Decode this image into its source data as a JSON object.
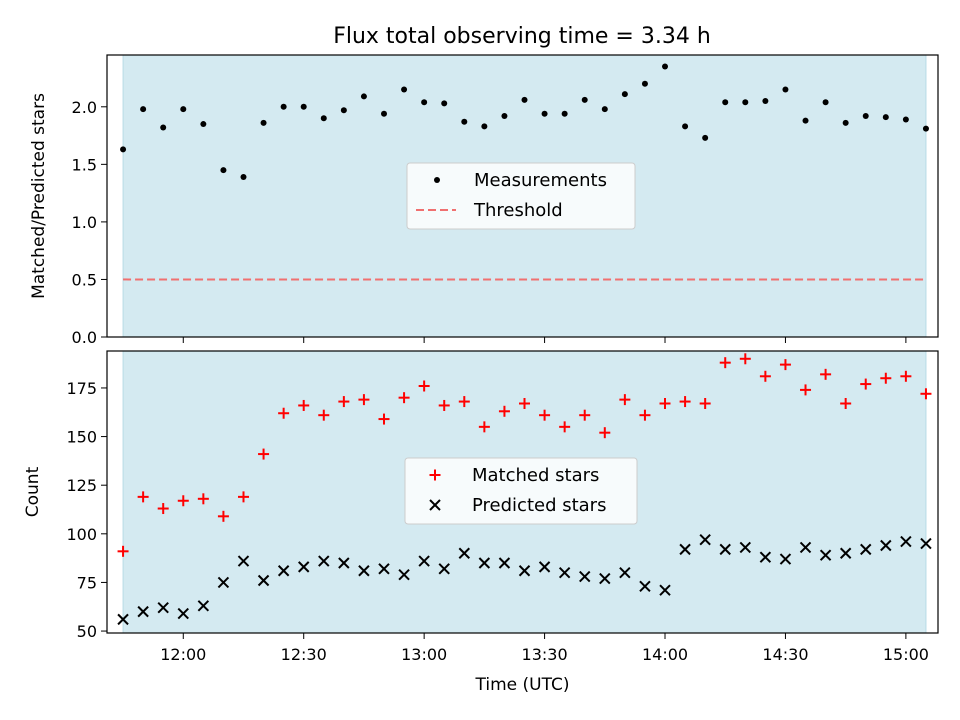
{
  "chart_data": [
    {
      "type": "scatter",
      "title": "Flux total observing time = 3.34 h",
      "ylabel": "Matched/Predicted stars",
      "xlabel": "",
      "ylim": [
        0,
        2.45
      ],
      "yticks": [
        0.0,
        0.5,
        1.0,
        1.5,
        2.0
      ],
      "ytick_labels": [
        "0.0",
        "0.5",
        "1.0",
        "1.5",
        "2.0"
      ],
      "xlim": [
        "11:41",
        "15:08"
      ],
      "x_time_axis": true,
      "shaded_band": {
        "from": "11:45",
        "to": "15:05",
        "color": "#d4eaf1"
      },
      "threshold": {
        "label": "Threshold",
        "value": 0.5,
        "color": "#f07070",
        "style": "dashed"
      },
      "legend_placement": "center",
      "series": [
        {
          "name": "Measurements",
          "marker": "dot",
          "color": "#000000",
          "x": [
            "11:45",
            "11:50",
            "11:55",
            "12:00",
            "12:05",
            "12:10",
            "12:15",
            "12:20",
            "12:25",
            "12:30",
            "12:35",
            "12:40",
            "12:45",
            "12:50",
            "12:55",
            "13:00",
            "13:05",
            "13:10",
            "13:15",
            "13:20",
            "13:25",
            "13:30",
            "13:35",
            "13:40",
            "13:45",
            "13:50",
            "13:55",
            "14:00",
            "14:05",
            "14:10",
            "14:15",
            "14:20",
            "14:25",
            "14:30",
            "14:35",
            "14:40",
            "14:45",
            "14:50",
            "14:55",
            "15:00",
            "15:05"
          ],
          "y": [
            1.63,
            1.98,
            1.82,
            1.98,
            1.85,
            1.45,
            1.39,
            1.86,
            2.0,
            2.0,
            1.9,
            1.97,
            2.09,
            1.94,
            2.15,
            2.04,
            2.03,
            1.87,
            1.83,
            1.92,
            2.06,
            1.94,
            1.94,
            2.06,
            1.98,
            2.11,
            2.2,
            2.35,
            1.83,
            1.73,
            2.04,
            2.04,
            2.05,
            2.15,
            1.88,
            2.04,
            1.86,
            1.92,
            1.91,
            1.89,
            1.81
          ]
        }
      ]
    },
    {
      "type": "scatter",
      "ylabel": "Count",
      "xlabel": "Time (UTC)",
      "ylim": [
        49,
        194
      ],
      "yticks": [
        50,
        75,
        100,
        125,
        150,
        175
      ],
      "ytick_labels": [
        "50",
        "75",
        "100",
        "125",
        "150",
        "175"
      ],
      "xlim": [
        "11:41",
        "15:08"
      ],
      "xticks": [
        "12:00",
        "12:30",
        "13:00",
        "13:30",
        "14:00",
        "14:30",
        "15:00"
      ],
      "xtick_labels": [
        "12:00",
        "12:30",
        "13:00",
        "13:30",
        "14:00",
        "14:30",
        "15:00"
      ],
      "shaded_band": {
        "from": "11:45",
        "to": "15:05",
        "color": "#d4eaf1"
      },
      "legend_placement": "center",
      "series": [
        {
          "name": "Matched stars",
          "marker": "plus",
          "color": "#ff0000",
          "x": [
            "11:45",
            "11:50",
            "11:55",
            "12:00",
            "12:05",
            "12:10",
            "12:15",
            "12:20",
            "12:25",
            "12:30",
            "12:35",
            "12:40",
            "12:45",
            "12:50",
            "12:55",
            "13:00",
            "13:05",
            "13:10",
            "13:15",
            "13:20",
            "13:25",
            "13:30",
            "13:35",
            "13:40",
            "13:45",
            "13:50",
            "13:55",
            "14:00",
            "14:05",
            "14:10",
            "14:15",
            "14:20",
            "14:25",
            "14:30",
            "14:35",
            "14:40",
            "14:45",
            "14:50",
            "14:55",
            "15:00",
            "15:05"
          ],
          "y": [
            91,
            119,
            113,
            117,
            118,
            109,
            119,
            141,
            162,
            166,
            161,
            168,
            169,
            159,
            170,
            176,
            166,
            168,
            155,
            163,
            167,
            161,
            155,
            161,
            152,
            169,
            161,
            167,
            168,
            167,
            188,
            190,
            181,
            187,
            174,
            182,
            167,
            177,
            180,
            181,
            172
          ]
        },
        {
          "name": "Predicted stars",
          "marker": "x",
          "color": "#000000",
          "x": [
            "11:45",
            "11:50",
            "11:55",
            "12:00",
            "12:05",
            "12:10",
            "12:15",
            "12:20",
            "12:25",
            "12:30",
            "12:35",
            "12:40",
            "12:45",
            "12:50",
            "12:55",
            "13:00",
            "13:05",
            "13:10",
            "13:15",
            "13:20",
            "13:25",
            "13:30",
            "13:35",
            "13:40",
            "13:45",
            "13:50",
            "13:55",
            "14:00",
            "14:05",
            "14:10",
            "14:15",
            "14:20",
            "14:25",
            "14:30",
            "14:35",
            "14:40",
            "14:45",
            "14:50",
            "14:55",
            "15:00",
            "15:05"
          ],
          "y": [
            56,
            60,
            62,
            59,
            63,
            75,
            86,
            76,
            81,
            83,
            86,
            85,
            81,
            82,
            79,
            86,
            82,
            90,
            85,
            85,
            81,
            83,
            80,
            78,
            77,
            80,
            73,
            71,
            92,
            97,
            92,
            93,
            88,
            87,
            93,
            89,
            90,
            92,
            94,
            96,
            95
          ]
        }
      ]
    }
  ]
}
